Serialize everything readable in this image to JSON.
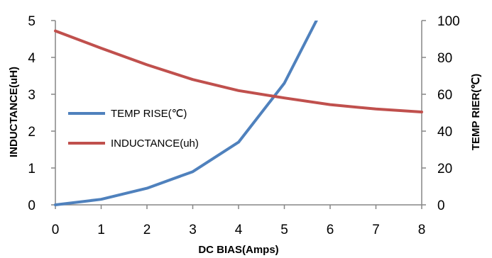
{
  "chart_data": {
    "type": "line",
    "xlabel": "DC  BIAS(Amps)",
    "ylabel_left": "INDUCTANCE(uH)",
    "ylabel_right": "TEMP RIER(℃)",
    "x_ticks": [
      "0",
      "1",
      "2",
      "3",
      "4",
      "5",
      "6",
      "7",
      "8"
    ],
    "y_left_ticks": [
      "0",
      "1",
      "2",
      "3",
      "4",
      "5"
    ],
    "y_right_ticks": [
      "0",
      "20",
      "40",
      "60",
      "80",
      "100"
    ],
    "xlim": [
      0,
      8
    ],
    "ylim_left": [
      0,
      5
    ],
    "ylim_right": [
      0,
      100
    ],
    "grid": false,
    "legend_position": "center-left",
    "series": [
      {
        "name": "TEMP RISE(℃)",
        "axis": "right",
        "color": "#4f81bd",
        "x": [
          0,
          1,
          2,
          3,
          4,
          5,
          5.7
        ],
        "y": [
          0,
          3,
          9,
          18,
          34,
          66,
          100
        ]
      },
      {
        "name": "INDUCTANCE(uh)",
        "axis": "left",
        "color": "#c0504d",
        "x": [
          0,
          1,
          2,
          3,
          4,
          5,
          6,
          7,
          8
        ],
        "y": [
          4.72,
          4.25,
          3.8,
          3.4,
          3.1,
          2.9,
          2.72,
          2.6,
          2.52
        ]
      }
    ]
  }
}
